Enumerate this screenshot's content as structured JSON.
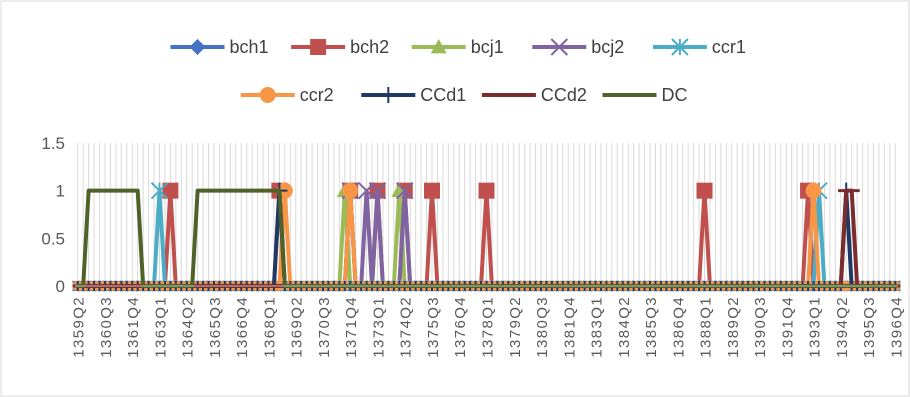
{
  "chart_data": {
    "type": "line",
    "categories_shown": [
      "1359Q2",
      "1360Q3",
      "1361Q4",
      "1363Q1",
      "1364Q2",
      "1365Q3",
      "1366Q4",
      "1368Q1",
      "1369Q2",
      "1370Q3",
      "1371Q4",
      "1373Q1",
      "1374Q2",
      "1375Q3",
      "1376Q4",
      "1378Q1",
      "1379Q2",
      "1380Q3",
      "1381Q4",
      "1383Q1",
      "1384Q2",
      "1385Q3",
      "1386Q4",
      "1388Q1",
      "1389Q2",
      "1390Q3",
      "1391Q4",
      "1393Q1",
      "1394Q2",
      "1395Q3",
      "1396Q4"
    ],
    "x_range": [
      "1359Q2",
      "1396Q4"
    ],
    "ylim": [
      0,
      1.5
    ],
    "yticks": [
      "0",
      "0.5",
      "1",
      "1.5"
    ],
    "grid": "vertical lines at every quarter",
    "legend_position": "top",
    "series": [
      {
        "name": "bch1",
        "color": "#4472C4",
        "marker": "diamond",
        "ones": []
      },
      {
        "name": "bch2",
        "color": "#C0504D",
        "marker": "square",
        "ones": [
          "1363Q3",
          "1368Q3",
          "1371Q4",
          "1373Q1",
          "1374Q2",
          "1375Q3",
          "1378Q1",
          "1388Q1",
          "1392Q4"
        ]
      },
      {
        "name": "bcj1",
        "color": "#9BBB59",
        "marker": "triangle",
        "ones": [
          "1371Q3",
          "1374Q1"
        ]
      },
      {
        "name": "bcj2",
        "color": "#8064A2",
        "marker": "x",
        "ones": [
          "1371Q4",
          "1372Q3",
          "1373Q1",
          "1374Q2"
        ]
      },
      {
        "name": "ccr1",
        "color": "#4BACC6",
        "marker": "star",
        "ones": [
          "1363Q1",
          "1393Q2"
        ]
      },
      {
        "name": "ccr2",
        "color": "#F79646",
        "marker": "circle",
        "ones": [
          "1368Q4",
          "1371Q4",
          "1393Q1"
        ]
      },
      {
        "name": "CCd1",
        "color": "#1F3864",
        "marker": "plus",
        "ones": [
          "1368Q3",
          "1394Q3"
        ]
      },
      {
        "name": "CCd2",
        "color": "#7B2C2C",
        "marker": "dash",
        "ones": [
          "1394Q3",
          "1394Q4"
        ]
      },
      {
        "name": "DC",
        "color": "#4F6228",
        "marker": "none",
        "ones": [
          "1359Q4",
          "1360Q1",
          "1360Q2",
          "1360Q3",
          "1360Q4",
          "1361Q1",
          "1361Q2",
          "1361Q3",
          "1361Q4",
          "1362Q1",
          "1364Q4",
          "1365Q1",
          "1365Q2",
          "1365Q3",
          "1365Q4",
          "1366Q1",
          "1366Q2",
          "1366Q3",
          "1366Q4",
          "1367Q1",
          "1367Q2",
          "1367Q3",
          "1367Q4",
          "1368Q1",
          "1368Q2",
          "1368Q3"
        ]
      }
    ]
  }
}
